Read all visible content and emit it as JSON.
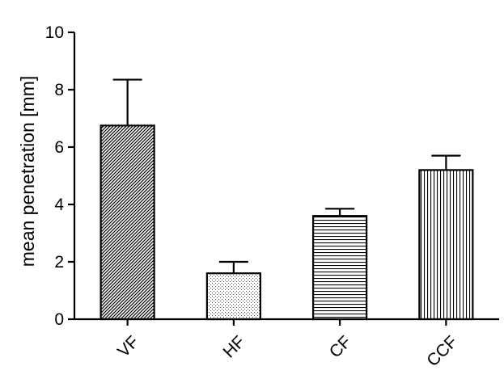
{
  "chart_data": {
    "type": "bar",
    "categories": [
      "VF",
      "HF",
      "CF",
      "CCF"
    ],
    "values": [
      6.75,
      1.6,
      3.6,
      5.2
    ],
    "error_upper": [
      8.35,
      2.0,
      3.85,
      5.7
    ],
    "patterns": [
      "diagonal-hatch",
      "stipple",
      "horizontal-lines",
      "vertical-lines"
    ],
    "xlabel": "",
    "ylabel": "mean penetration [mm]",
    "ylim": [
      0,
      10
    ],
    "yticks": [
      0,
      2,
      4,
      6,
      8,
      10
    ],
    "grid": false,
    "colors": {
      "bar_stroke": "#000000",
      "pattern": "#000000",
      "background": "#ffffff"
    }
  }
}
